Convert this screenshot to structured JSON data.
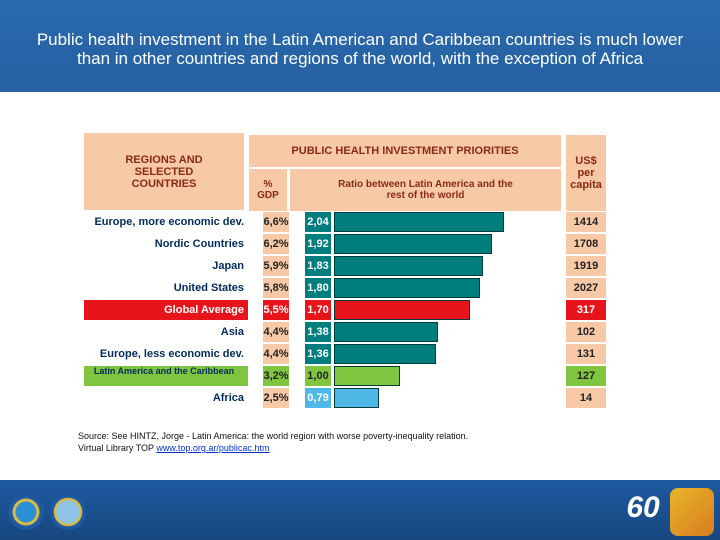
{
  "title": "Public health investment in the Latin American and Caribbean countries is much lower than in other countries and regions of the world, with the exception of Africa",
  "headers": {
    "regions": "REGIONS AND SELECTED COUNTRIES",
    "priorities": "PUBLIC HEALTH INVESTMENT PRIORITIES",
    "gdp": "% GDP",
    "ratio": "Ratio between Latin America and the rest of the world",
    "usd": "US$ per capita"
  },
  "colors": {
    "bar_default": "#007d7d",
    "bar_global": "#e8141b",
    "bar_latam": "#7fc53f",
    "bar_africa": "#4fb8e6",
    "header_fill": "#f7c9a6"
  },
  "chart_data": {
    "type": "bar",
    "orientation": "horizontal",
    "title": "PUBLIC HEALTH INVESTMENT PRIORITIES",
    "categories": [
      "Europe, more economic dev.",
      "Nordic Countries",
      "Japan",
      "United States",
      "Global Average",
      "Asia",
      "Europe, less economic dev.",
      "Latin America and the Caribbean",
      "Africa"
    ],
    "gdp_percent_labels": [
      "6,6%",
      "6,2%",
      "5,9%",
      "5,8%",
      "5,5%",
      "4,4%",
      "4,4%",
      "3,2%",
      "2,5%"
    ],
    "ratio_labels": [
      "2,04",
      "1,92",
      "1,83",
      "1,80",
      "1,70",
      "1,38",
      "1,36",
      "1,00",
      "0,79"
    ],
    "ratio_values": [
      2.04,
      1.92,
      1.83,
      1.8,
      1.7,
      1.38,
      1.36,
      1.0,
      0.79
    ],
    "usd_per_capita": [
      "1414",
      "1708",
      "1919",
      "2027",
      "317",
      "102",
      "131",
      "127",
      "14"
    ],
    "highlight": {
      "Global Average": "bar_global",
      "Latin America and the Caribbean": "bar_latam",
      "Africa": "bar_africa"
    }
  },
  "source": {
    "text": "Source: See HINTZ, Jorge - Latin America: the world region with worse poverty-inequality relation.",
    "text2": "Virtual Library TOP",
    "link": "www.top.org.ar/publicac.htm"
  },
  "logo_text": "60"
}
